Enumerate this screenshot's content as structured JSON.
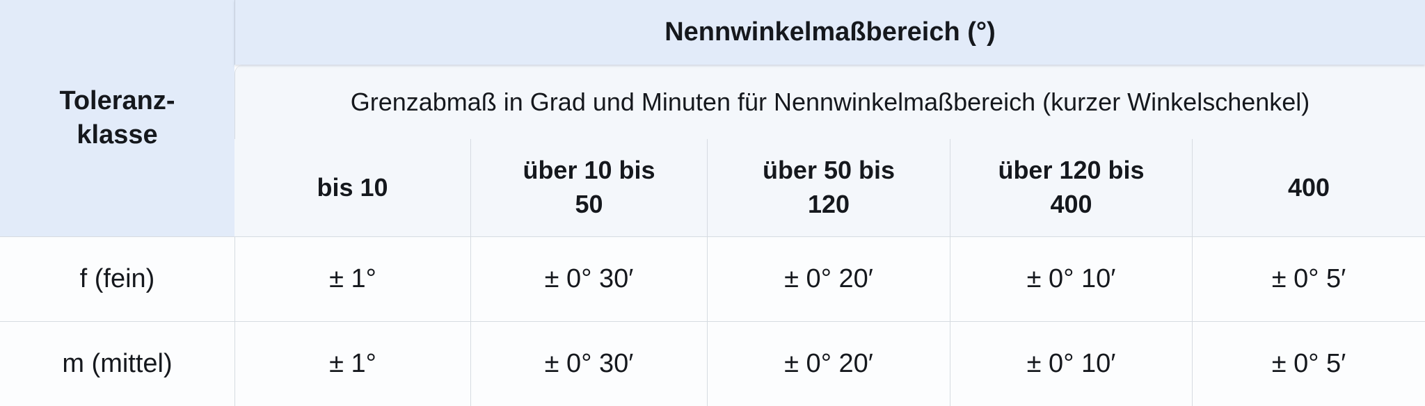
{
  "colors": {
    "header_blue": "#e2ebf9",
    "panel_light": "#f4f7fb",
    "cell_white": "#fcfdfe",
    "border_light": "#d6dbe1",
    "text": "#15181d"
  },
  "chart_data": {
    "type": "table",
    "title": "Nennwinkelmaßbereich (°)",
    "subtitle": "Grenzabmaß in Grad und Minuten für Nennwinkelmaßbereich (kurzer Winkelschenkel)",
    "row_header_label": "Toleranz-klasse",
    "columns": [
      "bis 10",
      "über 10 bis 50",
      "über 50 bis 120",
      "über 120 bis 400",
      "400"
    ],
    "rows": [
      {
        "label": "f (fein)",
        "values": [
          "± 1°",
          "± 0° 30′",
          "± 0° 20′",
          "± 0° 10′",
          "± 0° 5′"
        ]
      },
      {
        "label": "m (mittel)",
        "values": [
          "± 1°",
          "± 0° 30′",
          "± 0° 20′",
          "± 0° 10′",
          "± 0° 5′"
        ]
      }
    ]
  },
  "display": {
    "corner_header": "Toleranz-\nklasse",
    "column_headers": [
      "bis 10",
      "über 10 bis\n50",
      "über 50 bis\n120",
      "über 120 bis\n400",
      "400"
    ]
  }
}
